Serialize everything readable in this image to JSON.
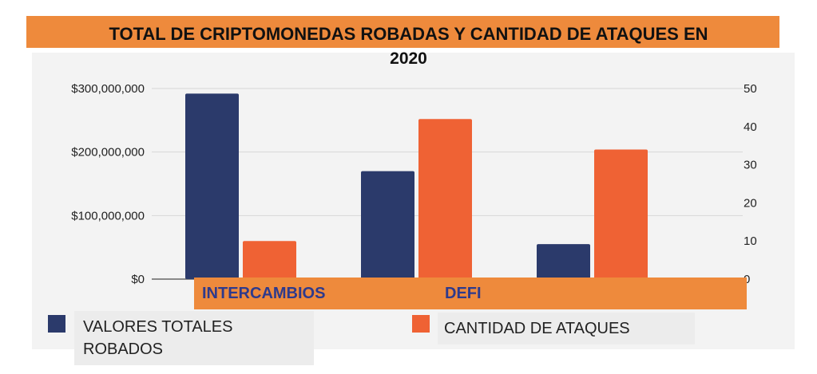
{
  "colors": {
    "accent_orange": "#ee8a3c",
    "series_navy": "#2b3a6b",
    "series_orange": "#ef6234",
    "label_blue": "#2e3a8c"
  },
  "chart_data": {
    "type": "bar",
    "title_line1": "TOTAL DE CRIPTOMONEDAS ROBADAS Y  CANTIDAD DE ATAQUES EN",
    "title_line2": "2020",
    "categories": [
      "INTERCAMBIOS",
      "DEFI",
      ""
    ],
    "series": [
      {
        "name": "VALORES TOTALES ROBADOS",
        "axis": "left",
        "values": [
          292000000,
          170000000,
          55000000
        ]
      },
      {
        "name": "CANTIDAD DE ATAQUES",
        "axis": "right",
        "values": [
          10,
          42,
          34
        ]
      }
    ],
    "y_left": {
      "range": [
        0,
        300000000
      ],
      "ticks": [
        "$0",
        "$100,000,000",
        "$200,000,000",
        "$300,000,000"
      ]
    },
    "y_right": {
      "range": [
        0,
        50
      ],
      "ticks": [
        "0",
        "10",
        "20",
        "30",
        "40",
        "50"
      ]
    },
    "grid": true,
    "legend_position": "bottom"
  }
}
